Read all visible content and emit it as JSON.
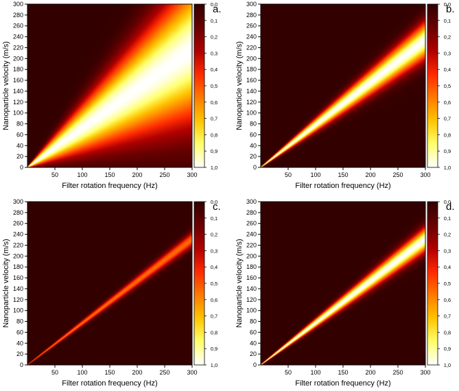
{
  "figure": {
    "panels_label": "4 heatmap panels"
  },
  "chart_data": [
    {
      "type": "heatmap",
      "panel_label": "a.",
      "xlabel": "Filter rotation frequency (Hz)",
      "ylabel": "Nanoparticle velocity (m/s)",
      "xlim": [
        0,
        300
      ],
      "ylim": [
        0,
        300
      ],
      "x_ticks": [
        "50",
        "100",
        "150",
        "200",
        "250",
        "300"
      ],
      "y_ticks": [
        "0",
        "20",
        "40",
        "60",
        "80",
        "100",
        "120",
        "140",
        "160",
        "180",
        "200",
        "220",
        "240",
        "260",
        "280",
        "300"
      ],
      "colorbar_ticks": [
        "0,0",
        "0,1",
        "0,2",
        "0,3",
        "0,4",
        "0,5",
        "0,6",
        "0,7",
        "0,8",
        "0,9",
        "1,0"
      ],
      "ridge_slope": 0.72,
      "relative_width": 0.42
    },
    {
      "type": "heatmap",
      "panel_label": "b.",
      "xlabel": "Filter rotation frequency (Hz)",
      "ylabel": "Nanoparticle velocity (m/s)",
      "xlim": [
        0,
        300
      ],
      "ylim": [
        0,
        300
      ],
      "x_ticks": [
        "50",
        "100",
        "150",
        "200",
        "250",
        "300"
      ],
      "y_ticks": [
        "0",
        "20",
        "40",
        "60",
        "80",
        "100",
        "120",
        "140",
        "160",
        "180",
        "200",
        "220",
        "240",
        "260",
        "280",
        "300"
      ],
      "colorbar_ticks": [
        "0,0",
        "0,1",
        "0,2",
        "0,3",
        "0,4",
        "0,5",
        "0,6",
        "0,7",
        "0,8",
        "0,9",
        "1,0"
      ],
      "ridge_slope": 0.78,
      "relative_width": 0.1
    },
    {
      "type": "heatmap",
      "panel_label": "c.",
      "xlabel": "Filter rotation frequency (Hz)",
      "ylabel": "Nanoparticle velocity (m/s)",
      "xlim": [
        0,
        300
      ],
      "ylim": [
        0,
        300
      ],
      "x_ticks": [
        "50",
        "100",
        "150",
        "200",
        "250",
        "300"
      ],
      "y_ticks": [
        "0",
        "20",
        "40",
        "60",
        "80",
        "100",
        "120",
        "140",
        "160",
        "180",
        "200",
        "220",
        "240",
        "260",
        "280",
        "300"
      ],
      "colorbar_ticks": [
        "0,0",
        "0,1",
        "0,2",
        "0,3",
        "0,4",
        "0,5",
        "0,6",
        "0,7",
        "0,8",
        "0,9",
        "1,0"
      ],
      "ridge_slope": 0.77,
      "relative_width": 0.04,
      "peak": 0.55
    },
    {
      "type": "heatmap",
      "panel_label": "d.",
      "xlabel": "Filter rotation frequency (Hz)",
      "ylabel": "Nanoparticle velocity (m/s)",
      "xlim": [
        0,
        300
      ],
      "ylim": [
        0,
        300
      ],
      "x_ticks": [
        "50",
        "100",
        "150",
        "200",
        "250",
        "300"
      ],
      "y_ticks": [
        "0",
        "20",
        "40",
        "60",
        "80",
        "100",
        "120",
        "140",
        "160",
        "180",
        "200",
        "220",
        "240",
        "260",
        "280",
        "300"
      ],
      "colorbar_ticks": [
        "0,0",
        "0,1",
        "0,2",
        "0,3",
        "0,4",
        "0,5",
        "0,6",
        "0,7",
        "0,8",
        "0,9",
        "1,0"
      ],
      "ridge_slope": 0.77,
      "relative_width": 0.065
    }
  ],
  "colormap": {
    "name": "red-yellow-white",
    "stops": [
      "#330000",
      "#6a0000",
      "#b00000",
      "#ff2a00",
      "#ff7a00",
      "#ffc400",
      "#ffff6a",
      "#ffffff"
    ]
  }
}
